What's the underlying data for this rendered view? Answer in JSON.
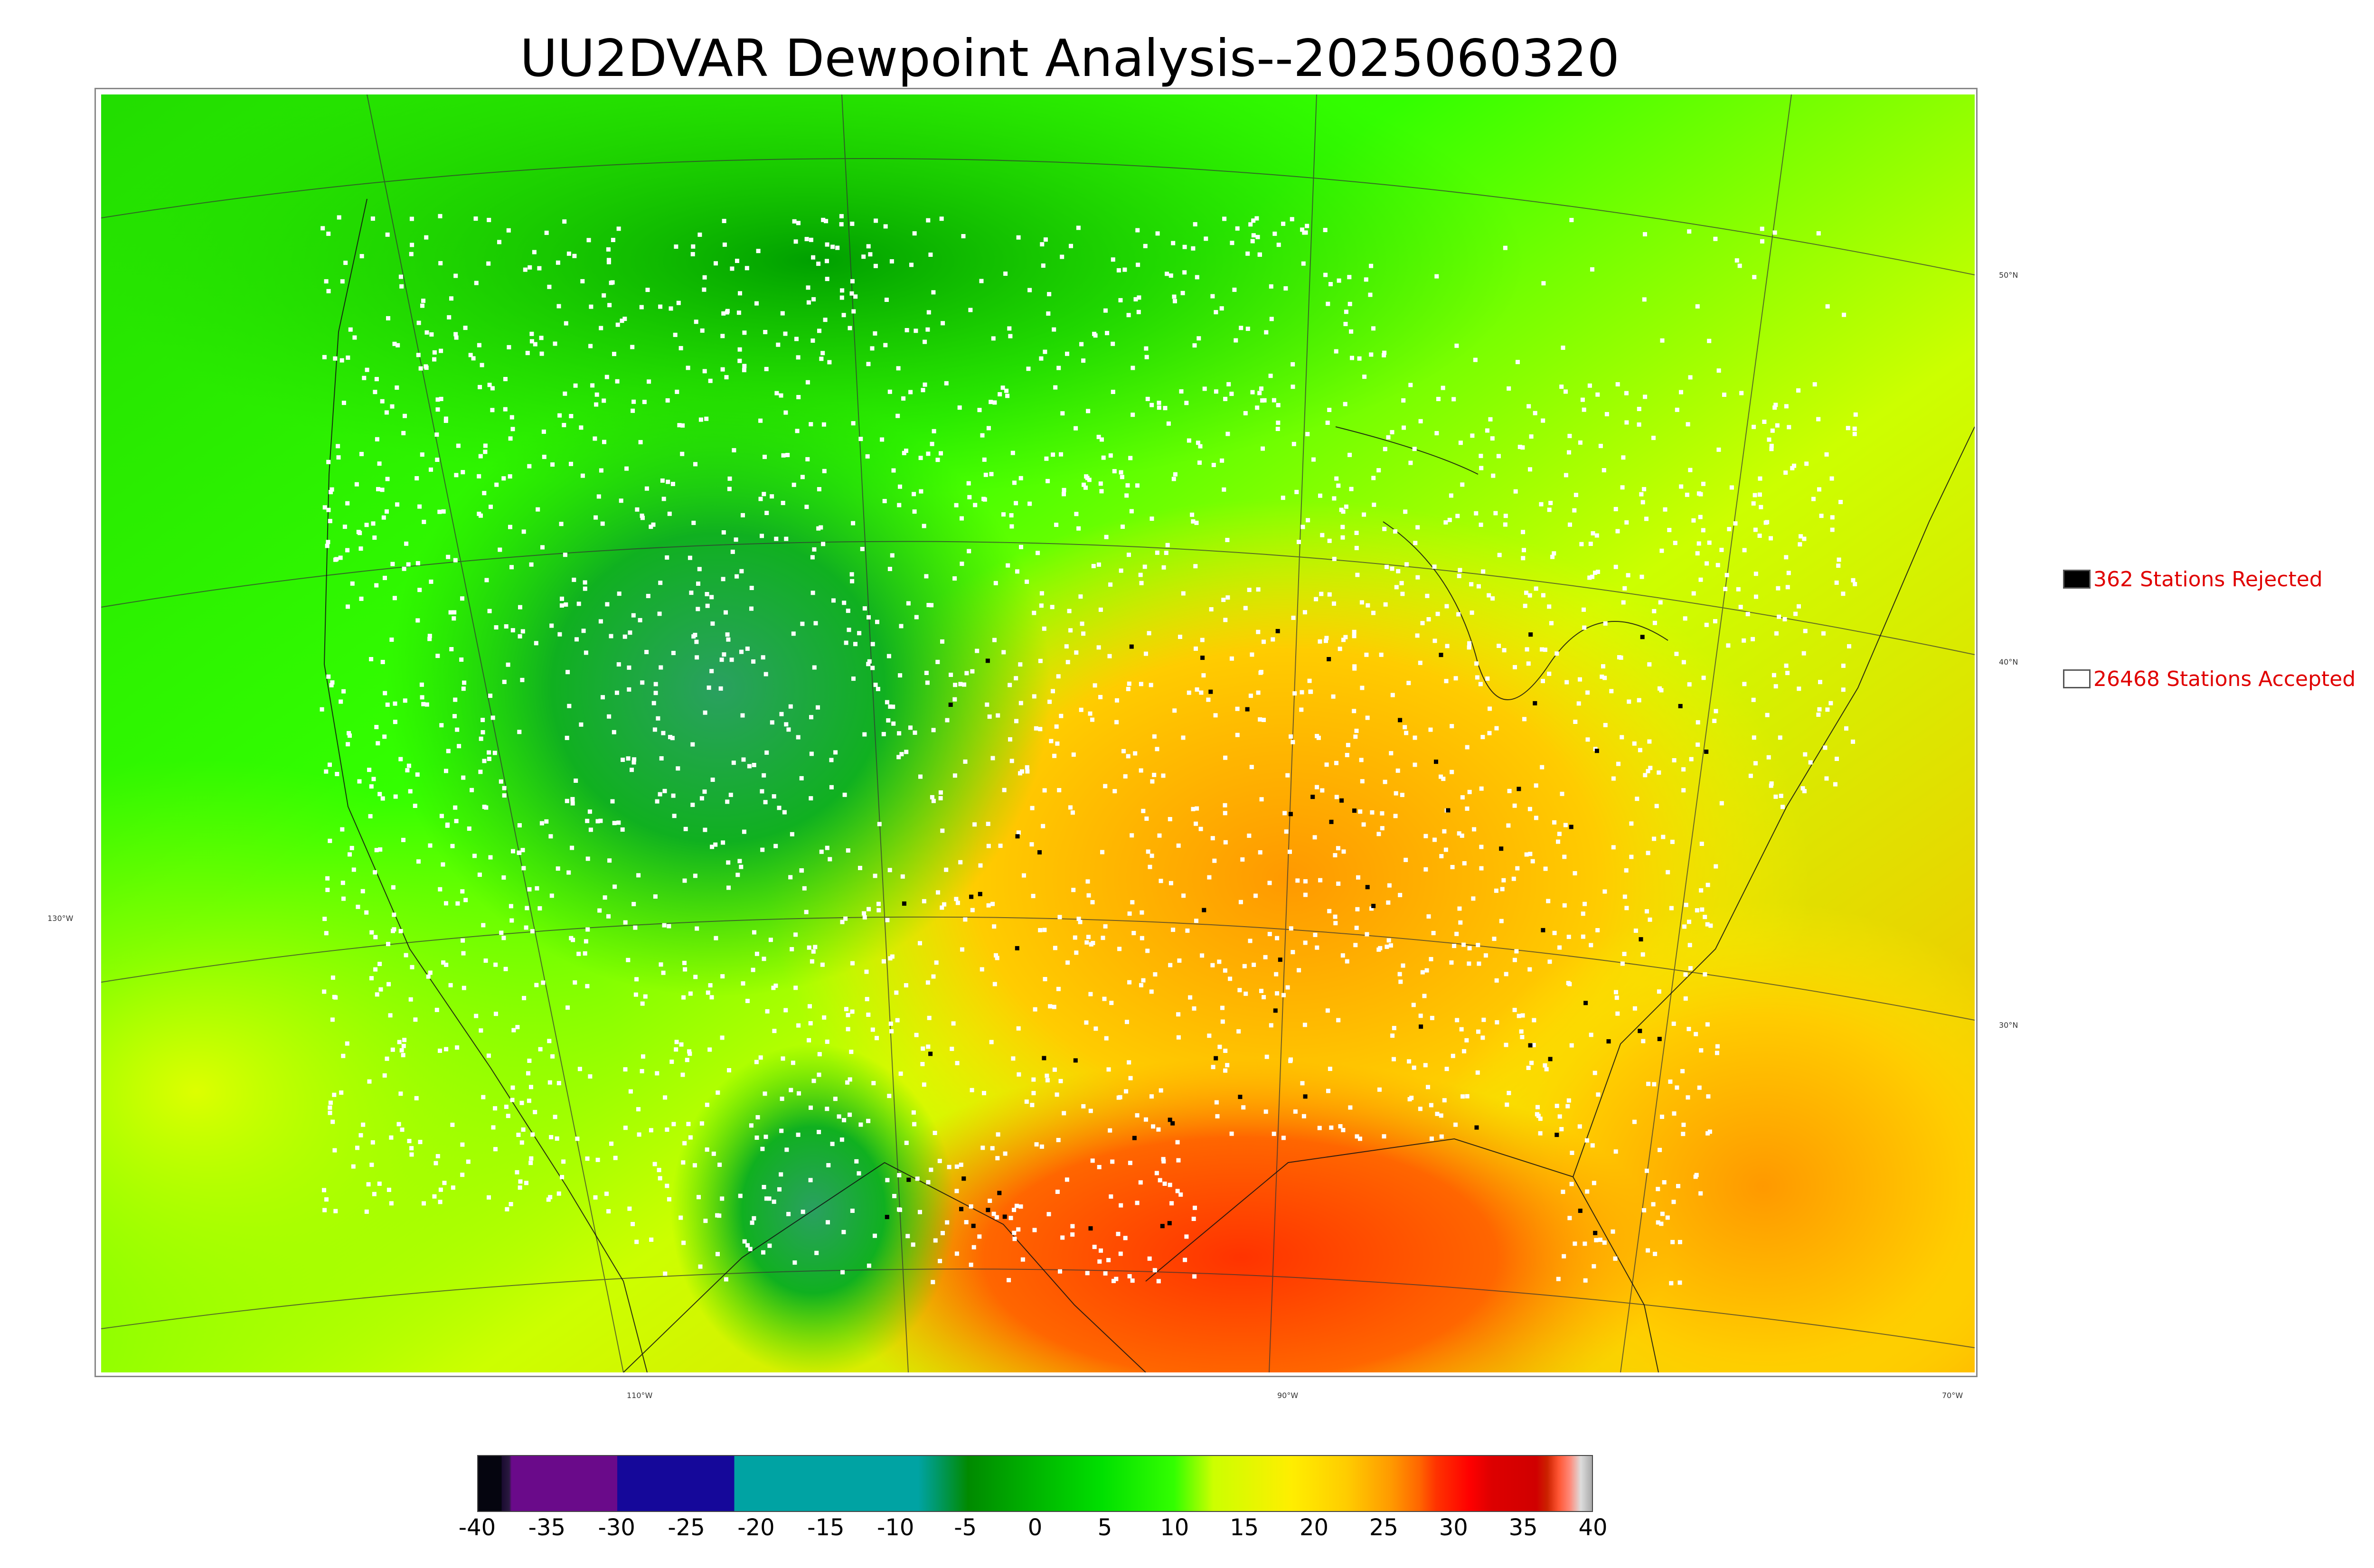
{
  "title": "UU2DVAR Dewpoint Analysis--2025060320",
  "map": {
    "lon_labels": [
      "110°W",
      "90°W",
      "70°W"
    ],
    "lat_labels": [
      "50°N",
      "40°N",
      "30°N"
    ],
    "west_label": "130°W"
  },
  "legend": {
    "rejected": {
      "label": "362 Stations Rejected",
      "color": "#000000"
    },
    "accepted": {
      "label": "26468 Stations Accepted",
      "color": "#ffffff"
    }
  },
  "colorbar": {
    "ticks": [
      "-40",
      "-35",
      "-30",
      "-25",
      "-20",
      "-15",
      "-10",
      "-5",
      "0",
      "5",
      "10",
      "15",
      "20",
      "25",
      "30",
      "35",
      "40"
    ],
    "range": [
      -40,
      40
    ]
  },
  "colors": {
    "cold": "#00a8a8",
    "green": "#00cc00",
    "bright_green": "#33ff00",
    "yellow": "#ffe600",
    "orange": "#ff9900",
    "red": "#ff2200"
  }
}
